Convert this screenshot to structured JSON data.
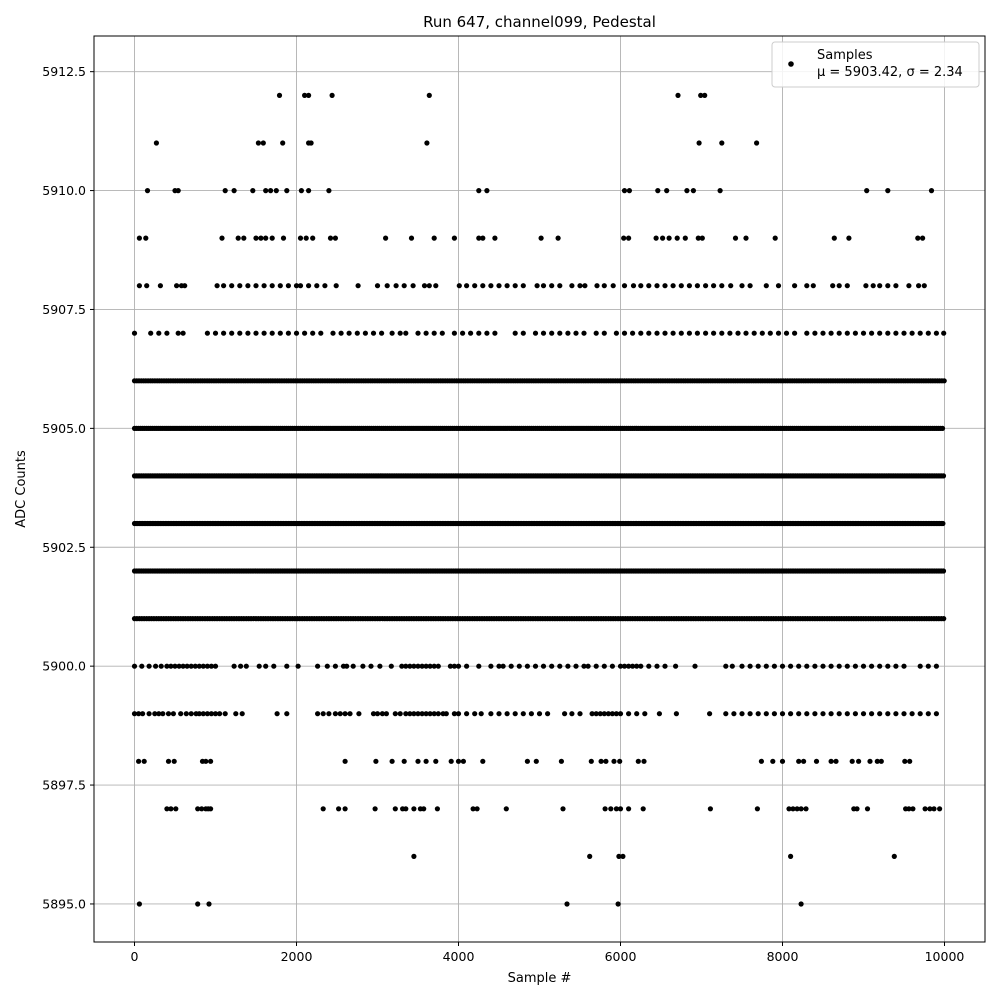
{
  "chart_data": {
    "type": "scatter",
    "title": "Run 647, channel099, Pedestal",
    "xlabel": "Sample #",
    "ylabel": "ADC Counts",
    "xlim": [
      -500,
      10500
    ],
    "ylim": [
      5894.2,
      5913.25
    ],
    "xticks": [
      0,
      2000,
      4000,
      6000,
      8000,
      10000
    ],
    "yticks": [
      5895.0,
      5897.5,
      5900.0,
      5902.5,
      5905.0,
      5907.5,
      5910.0,
      5912.5
    ],
    "xtick_labels": [
      "0",
      "2000",
      "4000",
      "6000",
      "8000",
      "10000"
    ],
    "ytick_labels": [
      "5895.0",
      "5897.5",
      "5900.0",
      "5902.5",
      "5905.0",
      "5907.5",
      "5910.0",
      "5912.5"
    ],
    "grid": true,
    "legend_position": "top-right",
    "marker_color": "#000000",
    "grid_color": "#b0b0b0",
    "legend": {
      "label": "Samples",
      "stats": "μ = 5903.42, σ = 2.34"
    },
    "series": [
      {
        "name": "Samples",
        "x_range": [
          0,
          9999
        ],
        "points": [
          {
            "x": 1790,
            "y": 5912
          },
          {
            "x": 2100,
            "y": 5912
          },
          {
            "x": 2150,
            "y": 5912
          },
          {
            "x": 2440,
            "y": 5912
          },
          {
            "x": 3640,
            "y": 5912
          },
          {
            "x": 6710,
            "y": 5912
          },
          {
            "x": 6990,
            "y": 5912
          },
          {
            "x": 7040,
            "y": 5912
          },
          {
            "x": 270,
            "y": 5911
          },
          {
            "x": 1530,
            "y": 5911
          },
          {
            "x": 1590,
            "y": 5911
          },
          {
            "x": 1830,
            "y": 5911
          },
          {
            "x": 2150,
            "y": 5911
          },
          {
            "x": 2180,
            "y": 5911
          },
          {
            "x": 3610,
            "y": 5911
          },
          {
            "x": 6970,
            "y": 5911
          },
          {
            "x": 7250,
            "y": 5911
          },
          {
            "x": 7680,
            "y": 5911
          },
          {
            "x": 160,
            "y": 5910
          },
          {
            "x": 500,
            "y": 5910
          },
          {
            "x": 540,
            "y": 5910
          },
          {
            "x": 1120,
            "y": 5910
          },
          {
            "x": 1230,
            "y": 5910
          },
          {
            "x": 1460,
            "y": 5910
          },
          {
            "x": 1620,
            "y": 5910
          },
          {
            "x": 1680,
            "y": 5910
          },
          {
            "x": 1750,
            "y": 5910
          },
          {
            "x": 1880,
            "y": 5910
          },
          {
            "x": 2060,
            "y": 5910
          },
          {
            "x": 2150,
            "y": 5910
          },
          {
            "x": 2400,
            "y": 5910
          },
          {
            "x": 4250,
            "y": 5910
          },
          {
            "x": 4350,
            "y": 5910
          },
          {
            "x": 6050,
            "y": 5910
          },
          {
            "x": 6110,
            "y": 5910
          },
          {
            "x": 6460,
            "y": 5910
          },
          {
            "x": 6570,
            "y": 5910
          },
          {
            "x": 6820,
            "y": 5910
          },
          {
            "x": 6900,
            "y": 5910
          },
          {
            "x": 7230,
            "y": 5910
          },
          {
            "x": 9040,
            "y": 5910
          },
          {
            "x": 9300,
            "y": 5910
          },
          {
            "x": 9840,
            "y": 5910
          },
          {
            "x": 60,
            "y": 5895
          },
          {
            "x": 780,
            "y": 5895
          },
          {
            "x": 920,
            "y": 5895
          },
          {
            "x": 5340,
            "y": 5895
          },
          {
            "x": 5970,
            "y": 5895
          },
          {
            "x": 8230,
            "y": 5895
          },
          {
            "x": 3450,
            "y": 5896
          },
          {
            "x": 5620,
            "y": 5896
          },
          {
            "x": 5980,
            "y": 5896
          },
          {
            "x": 6030,
            "y": 5896
          },
          {
            "x": 8100,
            "y": 5896
          },
          {
            "x": 9380,
            "y": 5896
          }
        ],
        "level_bands": [
          {
            "y": 5909,
            "xs": [
              60,
              140,
              1080,
              1280,
              1350,
              1500,
              1560,
              1620,
              1700,
              1840,
              2050,
              2120,
              2200,
              2420,
              2480,
              3100,
              3420,
              3700,
              3950,
              4250,
              4300,
              4450,
              5020,
              5230,
              6040,
              6100,
              6440,
              6520,
              6600,
              6700,
              6800,
              6960,
              7010,
              7420,
              7550,
              7910,
              8640,
              8820,
              9670,
              9730
            ]
          },
          {
            "y": 5908,
            "xs": [
              60,
              150,
              320,
              520,
              580,
              620,
              1020,
              1100,
              1200,
              1300,
              1400,
              1500,
              1600,
              1700,
              1800,
              1900,
              2000,
              2050,
              2150,
              2250,
              2350,
              2490,
              2760,
              3000,
              3120,
              3230,
              3330,
              3440,
              3580,
              3640,
              3720,
              4010,
              4100,
              4200,
              4300,
              4400,
              4500,
              4600,
              4700,
              4800,
              4970,
              5050,
              5150,
              5250,
              5400,
              5500,
              5560,
              5710,
              5800,
              5910,
              6050,
              6160,
              6250,
              6350,
              6450,
              6550,
              6650,
              6750,
              6850,
              6950,
              7050,
              7150,
              7250,
              7360,
              7500,
              7600,
              7800,
              7950,
              8150,
              8300,
              8380,
              8620,
              8700,
              8800,
              9030,
              9120,
              9200,
              9300,
              9400,
              9560,
              9680,
              9750
            ]
          },
          {
            "y": 5907,
            "xs": [
              0,
              200,
              300,
              400,
              540,
              600,
              900,
              1000,
              1100,
              1200,
              1300,
              1400,
              1500,
              1600,
              1700,
              1800,
              1900,
              2000,
              2100,
              2200,
              2300,
              2450,
              2550,
              2650,
              2750,
              2850,
              2950,
              3050,
              3180,
              3280,
              3350,
              3500,
              3600,
              3700,
              3800,
              3950,
              4050,
              4150,
              4250,
              4350,
              4450,
              4700,
              4800,
              4950,
              5050,
              5150,
              5250,
              5350,
              5450,
              5550,
              5700,
              5800,
              5950,
              6050,
              6150,
              6250,
              6350,
              6450,
              6550,
              6650,
              6750,
              6850,
              6950,
              7050,
              7150,
              7250,
              7350,
              7450,
              7550,
              7650,
              7750,
              7850,
              7950,
              8050,
              8150,
              8300,
              8400,
              8500,
              8600,
              8700,
              8800,
              8900,
              9000,
              9100,
              9200,
              9300,
              9400,
              9500,
              9600,
              9700,
              9800,
              9900,
              9990
            ]
          },
          {
            "y": 5906,
            "step": 28
          },
          {
            "y": 5905,
            "step": 25
          },
          {
            "y": 5904,
            "step": 22
          },
          {
            "y": 5903,
            "step": 20
          },
          {
            "y": 5902,
            "step": 22
          },
          {
            "y": 5901,
            "step": 30
          },
          {
            "y": 5900,
            "xs": [
              0,
              90,
              180,
              260,
              330,
              400,
              450,
              500,
              550,
              600,
              650,
              700,
              750,
              800,
              850,
              900,
              950,
              1000,
              1230,
              1310,
              1380,
              1540,
              1620,
              1720,
              1880,
              2020,
              2260,
              2380,
              2480,
              2580,
              2620,
              2700,
              2820,
              2920,
              3030,
              3170,
              3300,
              3350,
              3400,
              3450,
              3500,
              3550,
              3600,
              3650,
              3700,
              3750,
              3900,
              3950,
              4000,
              4100,
              4250,
              4400,
              4500,
              4550,
              4650,
              4750,
              4850,
              4950,
              5050,
              5150,
              5250,
              5350,
              5450,
              5550,
              5600,
              5700,
              5800,
              5900,
              6000,
              6050,
              6100,
              6150,
              6200,
              6250,
              6350,
              6450,
              6550,
              6680,
              6920,
              7300,
              7380,
              7500,
              7600,
              7700,
              7800,
              7900,
              8000,
              8100,
              8200,
              8300,
              8400,
              8500,
              8600,
              8700,
              8800,
              8900,
              9000,
              9100,
              9200,
              9300,
              9400,
              9500,
              9700,
              9800,
              9900
            ]
          },
          {
            "y": 5899,
            "xs": [
              0,
              50,
              100,
              180,
              250,
              300,
              350,
              420,
              480,
              570,
              640,
              700,
              760,
              800,
              850,
              900,
              950,
              1000,
              1050,
              1120,
              1250,
              1330,
              1760,
              1880,
              2260,
              2330,
              2400,
              2480,
              2540,
              2600,
              2660,
              2770,
              2950,
              3000,
              3060,
              3110,
              3220,
              3280,
              3350,
              3400,
              3450,
              3500,
              3550,
              3600,
              3650,
              3700,
              3750,
              3810,
              3850,
              3950,
              4000,
              4100,
              4200,
              4280,
              4400,
              4500,
              4600,
              4700,
              4800,
              4900,
              5000,
              5100,
              5310,
              5400,
              5500,
              5650,
              5700,
              5750,
              5800,
              5850,
              5900,
              5950,
              6000,
              6100,
              6200,
              6300,
              6480,
              6690,
              7100,
              7300,
              7400,
              7500,
              7600,
              7700,
              7800,
              7900,
              8000,
              8100,
              8200,
              8300,
              8400,
              8500,
              8600,
              8700,
              8800,
              8900,
              9000,
              9100,
              9200,
              9300,
              9400,
              9500,
              9600,
              9700,
              9800,
              9900
            ]
          },
          {
            "y": 5898,
            "xs": [
              50,
              120,
              420,
              490,
              840,
              880,
              940,
              2600,
              2980,
              3180,
              3330,
              3500,
              3600,
              3720,
              3910,
              4000,
              4060,
              4300,
              4850,
              4960,
              5270,
              5640,
              5760,
              5820,
              5920,
              5990,
              6220,
              6290,
              7740,
              7880,
              8000,
              8200,
              8260,
              8420,
              8600,
              8660,
              8860,
              8940,
              9080,
              9170,
              9220,
              9510,
              9570
            ]
          },
          {
            "y": 5897,
            "xs": [
              400,
              450,
              510,
              780,
              830,
              880,
              910,
              940,
              2330,
              2520,
              2600,
              2970,
              3220,
              3310,
              3350,
              3450,
              3530,
              3570,
              3740,
              4180,
              4230,
              4590,
              5290,
              5810,
              5880,
              5950,
              6000,
              6100,
              6280,
              7110,
              7690,
              8080,
              8130,
              8180,
              8230,
              8290,
              8880,
              8920,
              9050,
              9520,
              9560,
              9610,
              9760,
              9820,
              9870,
              9940
            ]
          }
        ]
      }
    ]
  }
}
